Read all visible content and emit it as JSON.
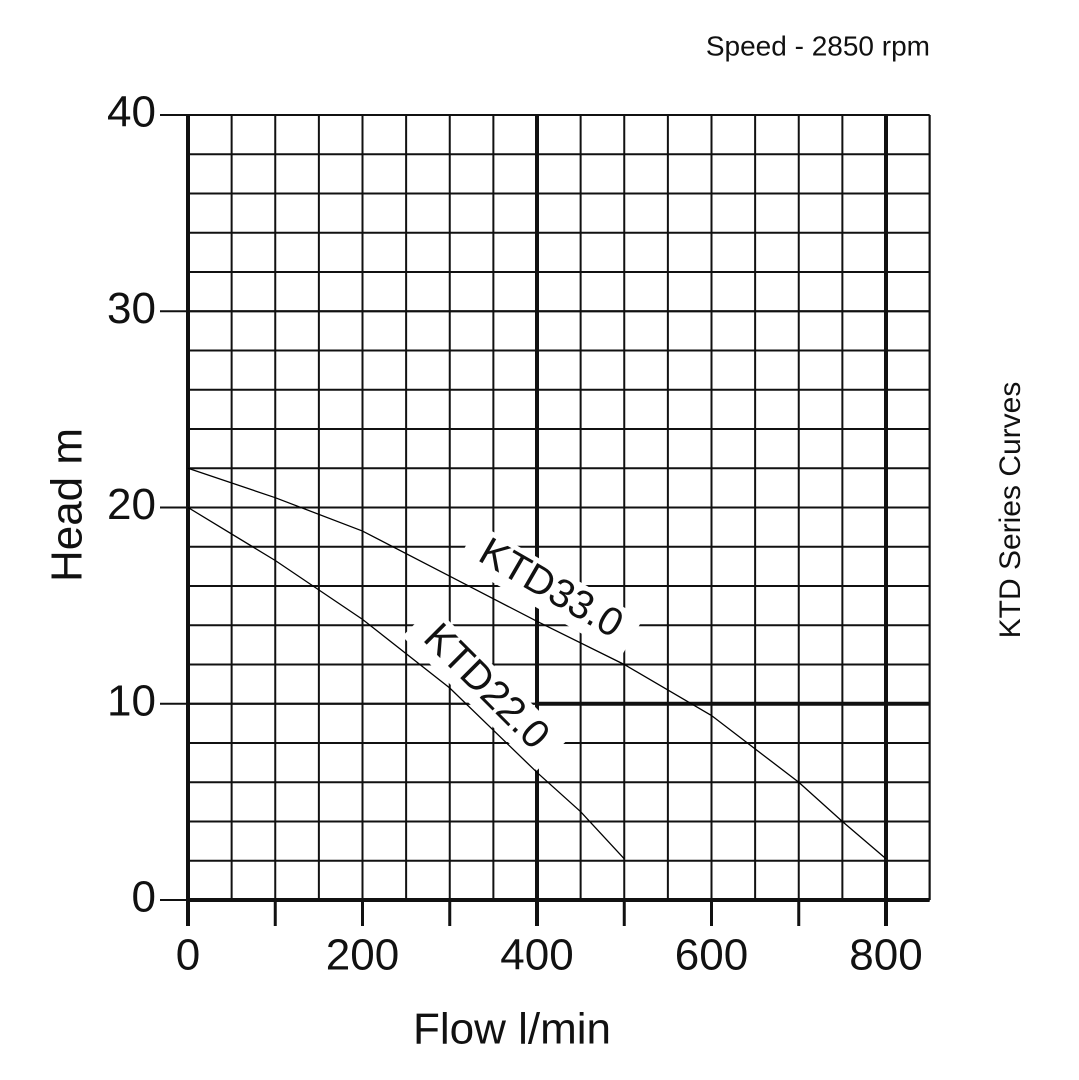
{
  "chart_data": {
    "type": "line",
    "subtitle": "Speed - 2850 rpm",
    "title": "KTD Series Curves",
    "x_label": "Flow l/min",
    "y_label": "Head m",
    "xlim": [
      0,
      850
    ],
    "xticks": [
      0,
      200,
      400,
      600,
      800
    ],
    "ylim": [
      0,
      40
    ],
    "yticks": [
      0,
      10,
      20,
      30,
      40
    ],
    "grid": true,
    "series": [
      {
        "name": "KTD33.0",
        "color": "#000000",
        "x": [
          0,
          100,
          200,
          300,
          400,
          500,
          600,
          700,
          750,
          800
        ],
        "values": [
          22,
          20.5,
          18.8,
          16.5,
          14.2,
          12,
          9.4,
          6,
          4,
          2.1
        ]
      },
      {
        "name": "KTD22.0",
        "color": "#000000",
        "x": [
          0,
          100,
          200,
          300,
          400,
          450,
          500
        ],
        "values": [
          20,
          17.3,
          14.3,
          10.8,
          6.5,
          4.5,
          2.1
        ]
      }
    ]
  }
}
